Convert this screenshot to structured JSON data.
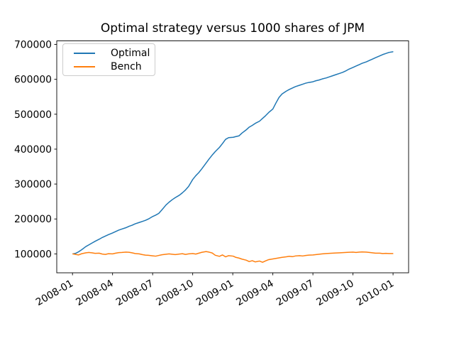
{
  "figure": {
    "background": "#ffffff"
  },
  "chart_data": {
    "type": "line",
    "title": "Optimal strategy versus 1000 shares of JPM",
    "xlabel": "",
    "ylabel": "",
    "grid": false,
    "legend": {
      "location": "upper left",
      "entries": [
        "Optimal",
        "Bench"
      ]
    },
    "x_axis": {
      "tick_labels": [
        "2008-01",
        "2008-04",
        "2008-07",
        "2008-10",
        "2009-01",
        "2009-04",
        "2009-07",
        "2009-10",
        "2010-01"
      ],
      "tick_dates": [
        "2008-01-01",
        "2008-04-01",
        "2008-07-01",
        "2008-10-01",
        "2009-01-01",
        "2009-04-01",
        "2009-07-01",
        "2009-10-01",
        "2010-01-01"
      ],
      "lim_dates": [
        "2007-11-26",
        "2010-02-06"
      ],
      "tick_rotation_deg": 30
    },
    "y_axis": {
      "tick_labels": [
        "100000",
        "200000",
        "300000",
        "400000",
        "500000",
        "600000",
        "700000"
      ],
      "ticks": [
        100000,
        200000,
        300000,
        400000,
        500000,
        600000,
        700000
      ],
      "lim": [
        45800,
        710200
      ]
    },
    "dates": [
      "2008-01-02",
      "2008-01-08",
      "2008-01-15",
      "2008-01-22",
      "2008-02-01",
      "2008-02-08",
      "2008-02-15",
      "2008-02-22",
      "2008-03-01",
      "2008-03-08",
      "2008-03-15",
      "2008-03-22",
      "2008-04-01",
      "2008-04-08",
      "2008-04-15",
      "2008-04-22",
      "2008-05-01",
      "2008-05-08",
      "2008-05-15",
      "2008-05-22",
      "2008-06-01",
      "2008-06-08",
      "2008-06-15",
      "2008-06-22",
      "2008-07-01",
      "2008-07-08",
      "2008-07-15",
      "2008-07-22",
      "2008-08-01",
      "2008-08-08",
      "2008-08-15",
      "2008-08-22",
      "2008-09-01",
      "2008-09-08",
      "2008-09-15",
      "2008-09-22",
      "2008-10-01",
      "2008-10-08",
      "2008-10-15",
      "2008-10-22",
      "2008-11-01",
      "2008-11-08",
      "2008-11-15",
      "2008-11-22",
      "2008-12-01",
      "2008-12-08",
      "2008-12-15",
      "2008-12-22",
      "2009-01-02",
      "2009-01-08",
      "2009-01-15",
      "2009-01-22",
      "2009-02-01",
      "2009-02-08",
      "2009-02-15",
      "2009-02-22",
      "2009-03-01",
      "2009-03-08",
      "2009-03-15",
      "2009-03-22",
      "2009-04-01",
      "2009-04-08",
      "2009-04-15",
      "2009-04-22",
      "2009-05-01",
      "2009-05-08",
      "2009-05-15",
      "2009-05-22",
      "2009-06-01",
      "2009-06-08",
      "2009-06-15",
      "2009-06-22",
      "2009-07-01",
      "2009-07-08",
      "2009-07-15",
      "2009-07-22",
      "2009-08-01",
      "2009-08-08",
      "2009-08-15",
      "2009-08-22",
      "2009-09-01",
      "2009-09-08",
      "2009-09-15",
      "2009-09-22",
      "2009-10-01",
      "2009-10-08",
      "2009-10-15",
      "2009-10-22",
      "2009-11-01",
      "2009-11-08",
      "2009-11-15",
      "2009-11-22",
      "2009-12-01",
      "2009-12-08",
      "2009-12-15",
      "2009-12-22",
      "2009-12-31"
    ],
    "series": [
      {
        "name": "Optimal",
        "color": "#1f77b4",
        "values": [
          100000,
          101500,
          106000,
          112000,
          121000,
          126000,
          131000,
          136000,
          142000,
          147000,
          151000,
          155000,
          160000,
          164000,
          168000,
          171000,
          175000,
          179000,
          182000,
          186000,
          190000,
          193000,
          196000,
          200000,
          207000,
          211000,
          216000,
          226000,
          240000,
          248000,
          255000,
          261000,
          268000,
          275000,
          283000,
          293000,
          313000,
          324000,
          333000,
          344000,
          360000,
          372000,
          383000,
          393000,
          405000,
          416000,
          428000,
          433000,
          434000,
          436000,
          438000,
          446000,
          455000,
          463000,
          468000,
          474000,
          480000,
          488000,
          496000,
          505000,
          515000,
          532000,
          548000,
          558000,
          566000,
          571000,
          575000,
          579000,
          583000,
          586000,
          589000,
          591000,
          593000,
          596000,
          598000,
          601000,
          604000,
          607000,
          610000,
          613000,
          617000,
          620000,
          624000,
          629000,
          634000,
          638000,
          642000,
          646000,
          650000,
          654000,
          658000,
          662000,
          667000,
          671000,
          674000,
          677000,
          679000
        ]
      },
      {
        "name": "Bench",
        "color": "#ff7f0e",
        "values": [
          100000,
          98500,
          97000,
          100500,
          103000,
          104000,
          103000,
          101500,
          102000,
          99500,
          98500,
          100500,
          100000,
          102000,
          103500,
          104000,
          105000,
          104500,
          103000,
          101000,
          100000,
          98000,
          96500,
          96000,
          94500,
          93500,
          95500,
          97500,
          99000,
          100000,
          99000,
          98000,
          99500,
          100500,
          98500,
          100000,
          101000,
          99500,
          102000,
          104500,
          106500,
          105000,
          102500,
          96000,
          93000,
          97000,
          91500,
          95000,
          93500,
          90000,
          88000,
          85000,
          82000,
          78000,
          80500,
          77000,
          79500,
          76000,
          80000,
          83500,
          85500,
          87000,
          88500,
          90000,
          91500,
          93000,
          92000,
          94000,
          95000,
          94000,
          95500,
          96500,
          97000,
          98000,
          99000,
          100000,
          101000,
          101500,
          102000,
          102500,
          103000,
          103500,
          104000,
          104500,
          105000,
          104000,
          105000,
          105500,
          105000,
          104000,
          103000,
          102000,
          102000,
          101000,
          101500,
          101000,
          101000
        ]
      }
    ]
  }
}
